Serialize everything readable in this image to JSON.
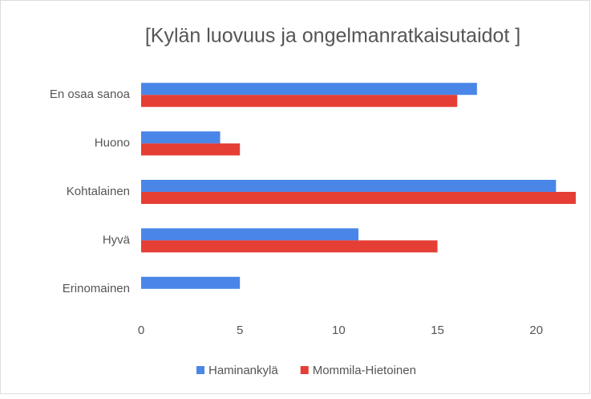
{
  "chart_data": {
    "type": "hbar",
    "title": "[Kylän luovuus ja ongelmanratkaisutaidot ]",
    "categories": [
      "En osaa sanoa",
      "Huono",
      "Kohtalainen",
      "Hyvä",
      "Erinomainen"
    ],
    "series": [
      {
        "name": "Haminankylä",
        "color": "#4a86e8",
        "values": [
          17,
          4,
          21,
          11,
          5
        ]
      },
      {
        "name": "Mommila-Hietoinen",
        "color": "#e53e35",
        "values": [
          16,
          5,
          22,
          15,
          0
        ]
      }
    ],
    "xlim": [
      0,
      22
    ],
    "xticks": [
      0,
      5,
      10,
      15,
      20
    ],
    "grid": false,
    "legend": "bottom"
  }
}
